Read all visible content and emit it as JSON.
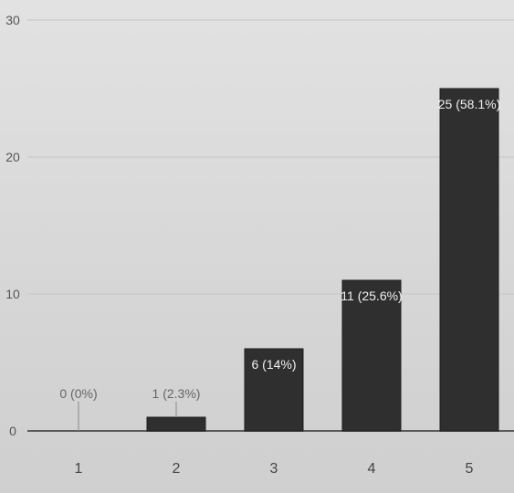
{
  "chart_data": {
    "type": "bar",
    "categories": [
      "1",
      "2",
      "3",
      "4",
      "5"
    ],
    "values": [
      0,
      1,
      6,
      11,
      25
    ],
    "data_labels": [
      "0 (0%)",
      "1 (2.3%)",
      "6 (14%)",
      "11 (25.6%)",
      "25 (58.1%)"
    ],
    "yticks": [
      "0",
      "10",
      "20",
      "30"
    ],
    "ylim": [
      0,
      30
    ],
    "grid": true,
    "colors": {
      "bar": "#2f2f2f",
      "background": "#dcdcdc",
      "gridline": "#c9c9c9"
    }
  }
}
